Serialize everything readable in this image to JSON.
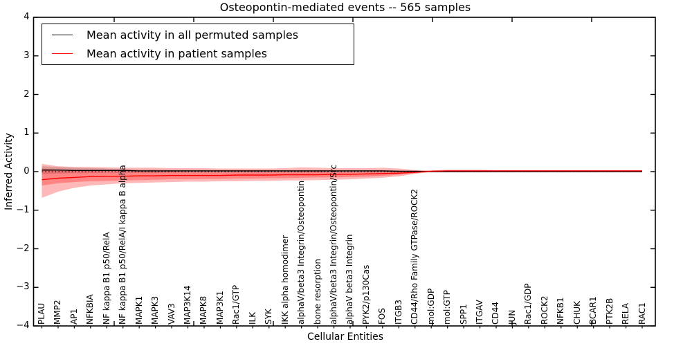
{
  "chart_data": {
    "type": "line",
    "title": "Osteopontin-mediated events -- 565 samples",
    "xlabel": "Cellular Entities",
    "ylabel": "Inferred Activity",
    "ylim": [
      -4,
      4
    ],
    "yticks": [
      -4,
      -3,
      -2,
      -1,
      0,
      1,
      2,
      3,
      4
    ],
    "grid": false,
    "zero_line": {
      "style": "dotted",
      "color": "#000000",
      "y": 0
    },
    "categories": [
      "PLAU",
      "MMP2",
      "AP1",
      "NFKBIA",
      "NF kappa B1 p50/RelA",
      "NF kappa B1 p50/RelA/I kappa B alpha",
      "MAPK1",
      "MAPK3",
      "VAV3",
      "MAP3K14",
      "MAPK8",
      "MAP3K1",
      "Rac1/GTP",
      "ILK",
      "SYK",
      "IKK alpha homodimer",
      "alphaV/beta3 Integrin/Osteopontin",
      "bone resorption",
      "alphaV/beta3 Integrin/Osteopontin/Src",
      "alphaV beta3 Integrin",
      "PYK2/p130Cas",
      "FOS",
      "ITGB3",
      "CD44/Rho Family GTPase/ROCK2",
      "mol:GDP",
      "mol:GTP",
      "SPP1",
      "ITGAV",
      "CD44",
      "JUN",
      "Rac1/GDP",
      "ROCK2",
      "NFKB1",
      "CHUK",
      "BCAR1",
      "PTK2B",
      "RELA",
      "RAC1"
    ],
    "series": [
      {
        "name": "Mean activity in all permuted samples",
        "color": "#000000",
        "values": [
          0.04,
          0.04,
          0.03,
          0.03,
          0.03,
          0.03,
          0.02,
          0.02,
          0.02,
          0.02,
          0.02,
          0.02,
          0.02,
          0.02,
          0.02,
          0.02,
          0.02,
          0.02,
          0.02,
          0.02,
          0.02,
          0.02,
          0.01,
          0.01,
          0,
          0,
          0,
          0,
          0,
          0,
          0,
          0,
          0,
          0,
          0,
          0,
          0,
          0
        ]
      },
      {
        "name": "Mean activity in patient samples",
        "color": "#ff0000",
        "values": [
          -0.21,
          -0.17,
          -0.15,
          -0.13,
          -0.12,
          -0.12,
          -0.11,
          -0.11,
          -0.1,
          -0.1,
          -0.1,
          -0.1,
          -0.09,
          -0.09,
          -0.09,
          -0.08,
          -0.08,
          -0.08,
          -0.07,
          -0.07,
          -0.06,
          -0.05,
          -0.04,
          -0.02,
          0.01,
          0.02,
          0.02,
          0.02,
          0.02,
          0.02,
          0.02,
          0.02,
          0.02,
          0.02,
          0.02,
          0.02,
          0.02,
          0.02
        ]
      }
    ],
    "bands": [
      {
        "name": "permuted-samples-std-band",
        "color": "rgba(0,0,0,0.16)",
        "upper": [
          0.14,
          0.12,
          0.1,
          0.09,
          0.08,
          0.07,
          0.06,
          0.06,
          0.05,
          0.05,
          0.05,
          0.04,
          0.04,
          0.04,
          0.04,
          0.04,
          0.04,
          0.04,
          0.04,
          0.04,
          0.04,
          0.04,
          0.03,
          0.02,
          0.02,
          0.02,
          0.02,
          0.02,
          0.02,
          0.02,
          0.02,
          0.02,
          0.02,
          0.02,
          0.02,
          0.02,
          0.02,
          0.02
        ],
        "lower": [
          -0.07,
          -0.05,
          -0.04,
          -0.04,
          -0.03,
          -0.03,
          -0.03,
          -0.03,
          -0.02,
          -0.02,
          -0.02,
          -0.02,
          -0.02,
          -0.02,
          -0.02,
          -0.02,
          -0.02,
          -0.02,
          -0.02,
          -0.02,
          -0.02,
          -0.02,
          -0.02,
          -0.01,
          -0.01,
          -0.01,
          -0.01,
          -0.01,
          -0.01,
          -0.01,
          -0.01,
          -0.01,
          -0.01,
          -0.01,
          -0.01,
          -0.01,
          -0.01,
          -0.01
        ]
      },
      {
        "name": "patient-samples-std-band-outer",
        "color": "rgba(255,0,0,0.28)",
        "upper": [
          0.2,
          0.14,
          0.12,
          0.12,
          0.11,
          0.1,
          0.1,
          0.1,
          0.09,
          0.09,
          0.09,
          0.08,
          0.08,
          0.08,
          0.08,
          0.09,
          0.11,
          0.1,
          0.09,
          0.09,
          0.09,
          0.1,
          0.08,
          0.04,
          0.03,
          0.05,
          0.05,
          0.05,
          0.04,
          0.04,
          0.04,
          0.04,
          0.04,
          0.04,
          0.04,
          0.04,
          0.04,
          0.04
        ],
        "lower": [
          -0.68,
          -0.52,
          -0.42,
          -0.36,
          -0.33,
          -0.3,
          -0.29,
          -0.28,
          -0.27,
          -0.26,
          -0.26,
          -0.25,
          -0.25,
          -0.24,
          -0.24,
          -0.23,
          -0.23,
          -0.22,
          -0.21,
          -0.2,
          -0.18,
          -0.16,
          -0.12,
          -0.06,
          -0.01,
          0,
          0,
          0,
          0,
          0,
          0,
          0,
          0,
          0,
          0,
          0,
          0,
          0
        ]
      },
      {
        "name": "patient-samples-std-band-inner",
        "color": "rgba(255,0,0,0.28)",
        "upper": [
          0.08,
          0.05,
          0.03,
          0.02,
          0.01,
          0.01,
          0,
          0,
          0,
          -0.01,
          -0.01,
          -0.01,
          -0.01,
          0,
          -0.01,
          -0.01,
          0,
          0,
          -0.01,
          -0.01,
          -0.01,
          0,
          0,
          0.01,
          0.02,
          0.03,
          0.03,
          0.03,
          0.03,
          0.03,
          0.03,
          0.03,
          0.03,
          0.03,
          0.03,
          0.03,
          0.03,
          0.03
        ],
        "lower": [
          -0.36,
          -0.3,
          -0.27,
          -0.25,
          -0.24,
          -0.23,
          -0.22,
          -0.21,
          -0.2,
          -0.2,
          -0.19,
          -0.19,
          -0.18,
          -0.18,
          -0.17,
          -0.17,
          -0.16,
          -0.15,
          -0.15,
          -0.14,
          -0.13,
          -0.11,
          -0.08,
          -0.04,
          0,
          0.01,
          0.01,
          0.01,
          0.01,
          0.01,
          0.01,
          0.01,
          0.01,
          0.01,
          0.01,
          0.01,
          0.01,
          0.01
        ]
      }
    ],
    "legend": {
      "position": "upper-left",
      "entries": [
        {
          "label": "Mean activity in all permuted samples",
          "color": "#000000"
        },
        {
          "label": "Mean activity in patient samples",
          "color": "#ff0000"
        }
      ]
    }
  }
}
